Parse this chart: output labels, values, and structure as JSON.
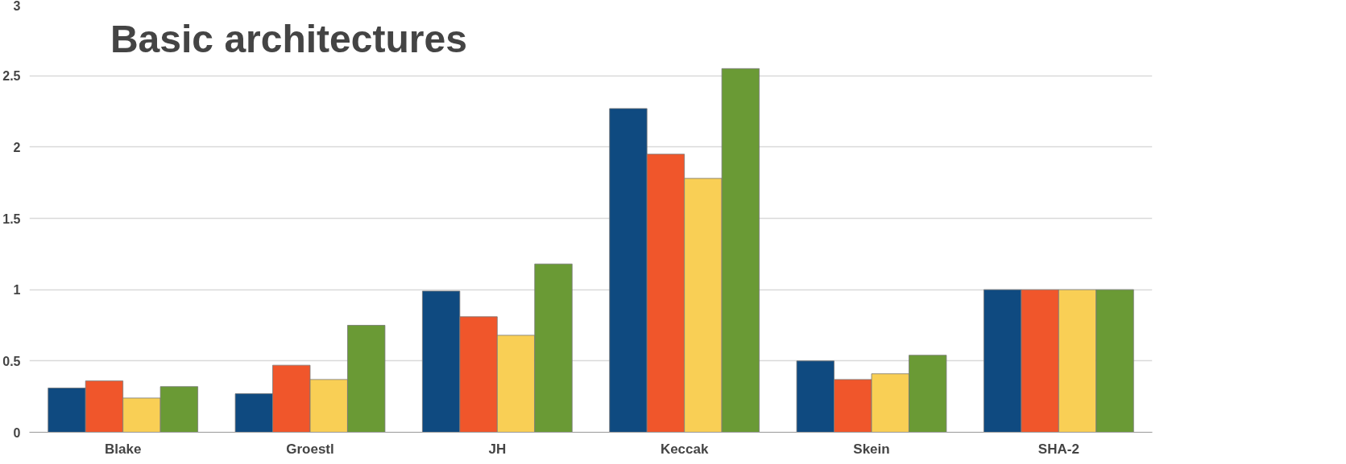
{
  "chart_data": {
    "type": "bar",
    "title": "Basic architectures",
    "categories": [
      "Blake",
      "Groestl",
      "JH",
      "Keccak",
      "Skein",
      "SHA-2"
    ],
    "series": [
      {
        "color": "#0f4a80",
        "values": [
          0.31,
          0.27,
          0.99,
          2.27,
          0.5,
          1.0
        ]
      },
      {
        "color": "#f0562b",
        "values": [
          0.36,
          0.47,
          0.81,
          1.95,
          0.37,
          1.0
        ]
      },
      {
        "color": "#f9cf55",
        "values": [
          0.24,
          0.37,
          0.68,
          1.78,
          0.41,
          1.0
        ]
      },
      {
        "color": "#6a9a35",
        "values": [
          0.32,
          0.75,
          1.18,
          2.55,
          0.54,
          1.0
        ]
      }
    ],
    "ylim": [
      0,
      3
    ],
    "yticks": [
      0,
      0.5,
      1,
      1.5,
      2,
      2.5,
      3
    ],
    "grid": "y"
  }
}
